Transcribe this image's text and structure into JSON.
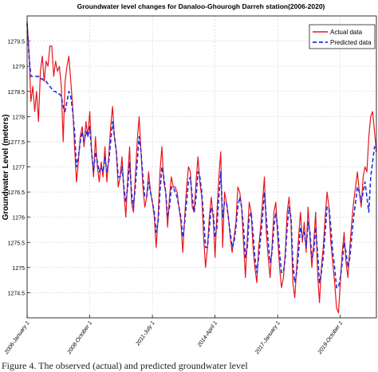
{
  "chart_data": {
    "type": "line",
    "title": "Groundwater level changes for Danaloo-Ghourogh Darreh station(2006-2020)",
    "xlabel": "",
    "ylabel": "Groundwater Level (meters)",
    "ylim": [
      1274,
      1280
    ],
    "y_ticks": [
      1274.5,
      1275,
      1275.5,
      1276,
      1276.5,
      1277,
      1277.5,
      1278,
      1278.5,
      1279,
      1279.5
    ],
    "y_tick_labels": [
      "1274.5",
      "1275",
      "1275.5",
      "1276",
      "1276.5",
      "1277",
      "1277.5",
      "1278",
      "1278.5",
      "1279",
      "1279.5"
    ],
    "x_ticks": [
      {
        "label": "2006-January 1",
        "index": 0
      },
      {
        "label": "2008-October 1",
        "index": 33
      },
      {
        "label": "2011-July 1",
        "index": 66
      },
      {
        "label": "2014-April 1",
        "index": 99
      },
      {
        "label": "2017-January 1",
        "index": 132
      },
      {
        "label": "2019-October 1",
        "index": 165
      }
    ],
    "grid": true,
    "legend_position": "top-right",
    "series": [
      {
        "name": "Actual data",
        "color": "#e8141c",
        "style": "solid",
        "values": [
          1279.9,
          1279.3,
          1278.3,
          1278.6,
          1278.1,
          1278.5,
          1277.9,
          1278.9,
          1279.2,
          1278.7,
          1279.1,
          1279.0,
          1279.4,
          1279.4,
          1278.8,
          1279.1,
          1278.9,
          1279.0,
          1278.6,
          1277.5,
          1278.7,
          1279.0,
          1279.2,
          1278.7,
          1278.2,
          1277.4,
          1276.7,
          1277.1,
          1277.6,
          1277.8,
          1277.4,
          1277.9,
          1277.6,
          1278.1,
          1277.3,
          1276.8,
          1277.6,
          1277.0,
          1276.7,
          1277.1,
          1276.8,
          1277.4,
          1276.7,
          1277.2,
          1277.8,
          1278.2,
          1277.6,
          1277.3,
          1276.6,
          1276.8,
          1277.2,
          1276.5,
          1276.0,
          1276.8,
          1277.4,
          1276.3,
          1276.1,
          1276.8,
          1277.5,
          1278.0,
          1277.3,
          1276.6,
          1276.2,
          1276.4,
          1276.9,
          1276.5,
          1276.3,
          1276.0,
          1275.4,
          1276.0,
          1276.9,
          1277.4,
          1276.7,
          1276.5,
          1275.8,
          1276.4,
          1276.8,
          1276.6,
          1276.6,
          1276.5,
          1276.2,
          1275.9,
          1275.3,
          1276.0,
          1276.6,
          1277.0,
          1276.9,
          1276.2,
          1276.1,
          1276.7,
          1277.2,
          1276.7,
          1276.4,
          1275.6,
          1275.0,
          1275.4,
          1276.0,
          1276.4,
          1276.0,
          1275.2,
          1276.1,
          1276.8,
          1277.3,
          1275.4,
          1276.5,
          1276.3,
          1276.0,
          1275.6,
          1275.3,
          1275.6,
          1275.9,
          1276.6,
          1276.5,
          1276.2,
          1275.5,
          1274.8,
          1275.6,
          1276.3,
          1276.1,
          1275.4,
          1275.0,
          1274.7,
          1275.4,
          1275.8,
          1276.3,
          1276.8,
          1275.7,
          1275.2,
          1274.8,
          1275.4,
          1276.1,
          1276.3,
          1275.6,
          1275.0,
          1274.6,
          1274.8,
          1275.3,
          1276.1,
          1276.4,
          1275.9,
          1274.7,
          1274.4,
          1275.0,
          1275.6,
          1276.1,
          1275.5,
          1275.9,
          1275.3,
          1276.2,
          1275.6,
          1275.0,
          1275.5,
          1276.1,
          1274.9,
          1274.3,
          1275.0,
          1275.4,
          1276.0,
          1276.5,
          1276.2,
          1275.5,
          1275.1,
          1274.7,
          1274.2,
          1274.1,
          1274.7,
          1275.3,
          1275.7,
          1275.1,
          1274.8,
          1275.4,
          1275.9,
          1276.3,
          1276.6,
          1276.9,
          1276.5,
          1276.2,
          1276.8,
          1277.0,
          1276.9,
          1277.6,
          1278.0,
          1278.1,
          1277.7,
          1277.3
        ]
      },
      {
        "name": "Predicted data",
        "color": "#1f2ee0",
        "style": "dashed",
        "values": [
          1279.85,
          1279.2,
          1278.8,
          1278.8,
          1278.8,
          1278.8,
          1278.8,
          1278.75,
          1278.75,
          1278.7,
          1278.7,
          1278.65,
          1278.6,
          1278.55,
          1278.5,
          1278.5,
          1278.45,
          1278.45,
          1278.4,
          1278.2,
          1278.1,
          1278.3,
          1278.5,
          1278.4,
          1278.1,
          1277.7,
          1277.0,
          1277.2,
          1277.5,
          1277.7,
          1277.5,
          1277.7,
          1277.6,
          1277.8,
          1277.3,
          1276.9,
          1277.3,
          1277.1,
          1276.9,
          1277.0,
          1276.9,
          1277.2,
          1276.9,
          1277.1,
          1277.5,
          1277.9,
          1277.6,
          1277.3,
          1276.8,
          1276.8,
          1277.0,
          1276.6,
          1276.3,
          1276.6,
          1277.1,
          1276.5,
          1276.2,
          1276.6,
          1277.1,
          1277.6,
          1277.3,
          1276.8,
          1276.4,
          1276.4,
          1276.7,
          1276.5,
          1276.3,
          1276.1,
          1275.7,
          1275.9,
          1276.5,
          1277.0,
          1276.8,
          1276.5,
          1276.0,
          1276.2,
          1276.6,
          1276.6,
          1276.5,
          1276.4,
          1276.2,
          1276.0,
          1275.6,
          1275.9,
          1276.3,
          1276.7,
          1276.8,
          1276.4,
          1276.1,
          1276.4,
          1276.9,
          1276.8,
          1276.5,
          1276.0,
          1275.4,
          1275.4,
          1275.8,
          1276.2,
          1276.1,
          1275.6,
          1275.8,
          1276.4,
          1276.9,
          1276.0,
          1276.3,
          1276.3,
          1276.0,
          1275.7,
          1275.4,
          1275.5,
          1275.8,
          1276.2,
          1276.4,
          1276.2,
          1275.8,
          1275.2,
          1275.4,
          1276.0,
          1276.1,
          1275.7,
          1275.2,
          1274.9,
          1275.2,
          1275.6,
          1276.0,
          1276.5,
          1276.0,
          1275.5,
          1275.1,
          1275.3,
          1275.8,
          1276.1,
          1275.8,
          1275.3,
          1274.9,
          1274.9,
          1275.2,
          1275.8,
          1276.2,
          1276.0,
          1275.1,
          1274.7,
          1274.9,
          1275.3,
          1275.8,
          1275.6,
          1275.7,
          1275.4,
          1275.9,
          1275.7,
          1275.2,
          1275.3,
          1275.8,
          1275.3,
          1274.7,
          1274.9,
          1275.2,
          1275.7,
          1276.2,
          1276.2,
          1275.8,
          1275.3,
          1275.0,
          1274.6,
          1274.6,
          1274.8,
          1275.1,
          1275.5,
          1275.3,
          1275.0,
          1275.2,
          1275.6,
          1276.0,
          1276.3,
          1276.6,
          1276.5,
          1276.3,
          1276.5,
          1276.7,
          1276.4,
          1276.1,
          1276.8,
          1277.1,
          1277.4,
          1277.3
        ]
      }
    ]
  },
  "caption_text": "Figure 4. The observed (actual) and predicted groundwater level"
}
